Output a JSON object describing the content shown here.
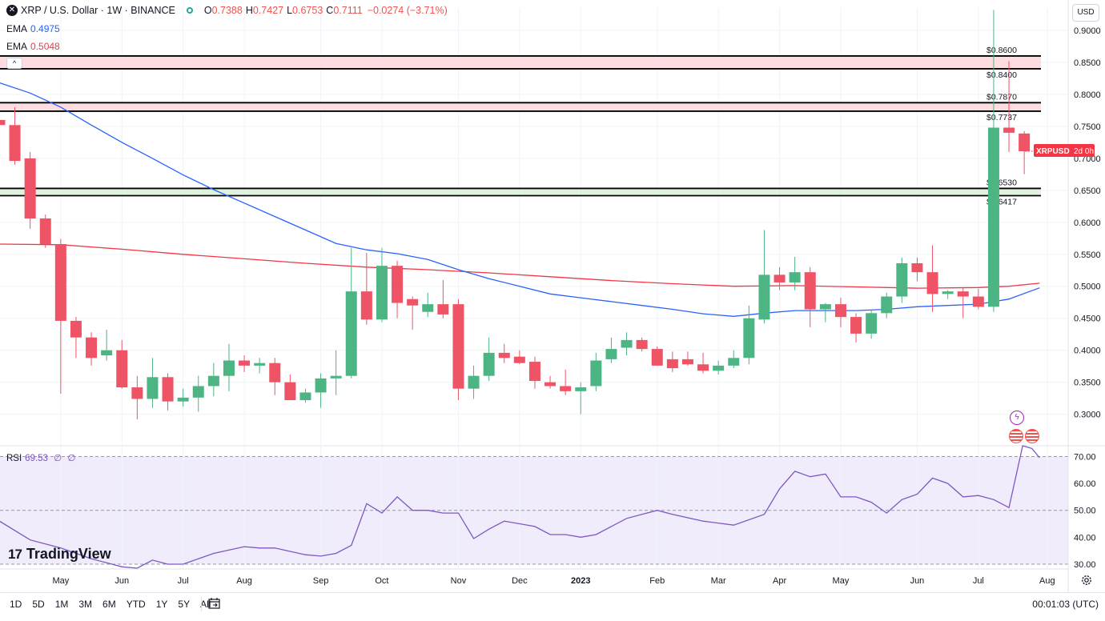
{
  "header": {
    "symbol_title": "XRP / U.S. Dollar · 1W · BINANCE",
    "ohlc": [
      {
        "label": "O",
        "value": "0.7388"
      },
      {
        "label": "H",
        "value": "0.7427"
      },
      {
        "label": "L",
        "value": "0.6753"
      },
      {
        "label": "C",
        "value": "0.7111"
      }
    ],
    "change": "−0.0274 (−3.71%)",
    "ema1_label": "EMA",
    "ema1_value": "0.4975",
    "ema2_label": "EMA",
    "ema2_value": "0.5048",
    "collapse_glyph": "^"
  },
  "currency_button": "USD",
  "rsi": {
    "label": "RSI",
    "value": "69.53",
    "extra1": "∅",
    "extra2": "∅"
  },
  "branding": {
    "logo_mark": "17",
    "logo_text": "TradingView"
  },
  "bottom_bar": {
    "ranges": [
      "1D",
      "5D",
      "1M",
      "3M",
      "6M",
      "YTD",
      "1Y",
      "5Y",
      "All"
    ],
    "clock": "00:01:03 (UTC)"
  },
  "icons": [
    "close-icon",
    "lightning-icon",
    "us-flag-icon",
    "calendar-icon",
    "gear-icon"
  ],
  "colors": {
    "up": "#4db584",
    "down": "#ef5366",
    "ema_fast": "#2962ff",
    "ema_slow": "#f23645",
    "rsi": "#7e57c2",
    "resist": "#ffd6d9",
    "support": "#d8f0d8"
  },
  "chart_data": {
    "type": "candlestick",
    "title": "XRP / U.S. Dollar · 1W · BINANCE",
    "price_ticks": [
      0.3,
      0.35,
      0.4,
      0.45,
      0.5,
      0.55,
      0.6,
      0.65,
      0.7,
      0.75,
      0.8,
      0.85,
      0.9
    ],
    "price_tick_labels": [
      "0.3000",
      "0.3500",
      "0.4000",
      "0.4500",
      "0.5000",
      "0.5500",
      "0.6000",
      "0.6500",
      "0.7000",
      "0.7500",
      "0.8000",
      "0.8500",
      "0.9000"
    ],
    "ylim": [
      0.252,
      0.935
    ],
    "x_labels": [
      {
        "label": "May",
        "x": 4
      },
      {
        "label": "Jun",
        "x": 8
      },
      {
        "label": "Jul",
        "x": 12
      },
      {
        "label": "Aug",
        "x": 16
      },
      {
        "label": "Sep",
        "x": 21
      },
      {
        "label": "Oct",
        "x": 25
      },
      {
        "label": "Nov",
        "x": 30
      },
      {
        "label": "Dec",
        "x": 34
      },
      {
        "label": "2023",
        "x": 38
      },
      {
        "label": "Feb",
        "x": 43
      },
      {
        "label": "Mar",
        "x": 47
      },
      {
        "label": "Apr",
        "x": 51
      },
      {
        "label": "May",
        "x": 55
      },
      {
        "label": "Jun",
        "x": 60
      },
      {
        "label": "Jul",
        "x": 64
      },
      {
        "label": "Aug",
        "x": 68.5
      }
    ],
    "candles": [
      {
        "o": 0.76,
        "h": 0.78,
        "l": 0.74,
        "c": 0.752
      },
      {
        "o": 0.752,
        "h": 0.78,
        "l": 0.69,
        "c": 0.696
      },
      {
        "o": 0.7,
        "h": 0.71,
        "l": 0.59,
        "c": 0.606
      },
      {
        "o": 0.606,
        "h": 0.612,
        "l": 0.56,
        "c": 0.566
      },
      {
        "o": 0.566,
        "h": 0.574,
        "l": 0.332,
        "c": 0.446
      },
      {
        "o": 0.446,
        "h": 0.452,
        "l": 0.388,
        "c": 0.42
      },
      {
        "o": 0.42,
        "h": 0.428,
        "l": 0.376,
        "c": 0.388
      },
      {
        "o": 0.392,
        "h": 0.432,
        "l": 0.384,
        "c": 0.4
      },
      {
        "o": 0.4,
        "h": 0.416,
        "l": 0.34,
        "c": 0.342
      },
      {
        "o": 0.342,
        "h": 0.36,
        "l": 0.292,
        "c": 0.324
      },
      {
        "o": 0.324,
        "h": 0.388,
        "l": 0.31,
        "c": 0.358
      },
      {
        "o": 0.358,
        "h": 0.364,
        "l": 0.306,
        "c": 0.32
      },
      {
        "o": 0.32,
        "h": 0.34,
        "l": 0.312,
        "c": 0.326
      },
      {
        "o": 0.326,
        "h": 0.36,
        "l": 0.304,
        "c": 0.344
      },
      {
        "o": 0.344,
        "h": 0.38,
        "l": 0.328,
        "c": 0.36
      },
      {
        "o": 0.36,
        "h": 0.41,
        "l": 0.336,
        "c": 0.384
      },
      {
        "o": 0.384,
        "h": 0.392,
        "l": 0.366,
        "c": 0.376
      },
      {
        "o": 0.376,
        "h": 0.388,
        "l": 0.364,
        "c": 0.38
      },
      {
        "o": 0.38,
        "h": 0.388,
        "l": 0.33,
        "c": 0.35
      },
      {
        "o": 0.35,
        "h": 0.362,
        "l": 0.322,
        "c": 0.322
      },
      {
        "o": 0.322,
        "h": 0.34,
        "l": 0.318,
        "c": 0.334
      },
      {
        "o": 0.334,
        "h": 0.364,
        "l": 0.31,
        "c": 0.356
      },
      {
        "o": 0.356,
        "h": 0.4,
        "l": 0.33,
        "c": 0.36
      },
      {
        "o": 0.36,
        "h": 0.56,
        "l": 0.356,
        "c": 0.492
      },
      {
        "o": 0.492,
        "h": 0.552,
        "l": 0.44,
        "c": 0.448
      },
      {
        "o": 0.448,
        "h": 0.56,
        "l": 0.444,
        "c": 0.532
      },
      {
        "o": 0.532,
        "h": 0.54,
        "l": 0.45,
        "c": 0.474
      },
      {
        "o": 0.48,
        "h": 0.484,
        "l": 0.432,
        "c": 0.47
      },
      {
        "o": 0.46,
        "h": 0.49,
        "l": 0.452,
        "c": 0.472
      },
      {
        "o": 0.472,
        "h": 0.51,
        "l": 0.45,
        "c": 0.456
      },
      {
        "o": 0.472,
        "h": 0.48,
        "l": 0.322,
        "c": 0.34
      },
      {
        "o": 0.34,
        "h": 0.376,
        "l": 0.324,
        "c": 0.36
      },
      {
        "o": 0.36,
        "h": 0.42,
        "l": 0.352,
        "c": 0.396
      },
      {
        "o": 0.396,
        "h": 0.41,
        "l": 0.38,
        "c": 0.388
      },
      {
        "o": 0.39,
        "h": 0.4,
        "l": 0.378,
        "c": 0.38
      },
      {
        "o": 0.382,
        "h": 0.39,
        "l": 0.34,
        "c": 0.352
      },
      {
        "o": 0.35,
        "h": 0.36,
        "l": 0.34,
        "c": 0.344
      },
      {
        "o": 0.344,
        "h": 0.37,
        "l": 0.33,
        "c": 0.336
      },
      {
        "o": 0.336,
        "h": 0.35,
        "l": 0.3,
        "c": 0.342
      },
      {
        "o": 0.344,
        "h": 0.396,
        "l": 0.336,
        "c": 0.384
      },
      {
        "o": 0.386,
        "h": 0.42,
        "l": 0.38,
        "c": 0.402
      },
      {
        "o": 0.404,
        "h": 0.428,
        "l": 0.392,
        "c": 0.416
      },
      {
        "o": 0.416,
        "h": 0.42,
        "l": 0.398,
        "c": 0.402
      },
      {
        "o": 0.402,
        "h": 0.406,
        "l": 0.376,
        "c": 0.376
      },
      {
        "o": 0.386,
        "h": 0.398,
        "l": 0.366,
        "c": 0.372
      },
      {
        "o": 0.386,
        "h": 0.398,
        "l": 0.376,
        "c": 0.378
      },
      {
        "o": 0.378,
        "h": 0.396,
        "l": 0.364,
        "c": 0.368
      },
      {
        "o": 0.368,
        "h": 0.384,
        "l": 0.362,
        "c": 0.376
      },
      {
        "o": 0.376,
        "h": 0.4,
        "l": 0.372,
        "c": 0.388
      },
      {
        "o": 0.388,
        "h": 0.47,
        "l": 0.378,
        "c": 0.45
      },
      {
        "o": 0.448,
        "h": 0.588,
        "l": 0.442,
        "c": 0.518
      },
      {
        "o": 0.518,
        "h": 0.53,
        "l": 0.494,
        "c": 0.506
      },
      {
        "o": 0.506,
        "h": 0.546,
        "l": 0.494,
        "c": 0.522
      },
      {
        "o": 0.522,
        "h": 0.53,
        "l": 0.436,
        "c": 0.464
      },
      {
        "o": 0.464,
        "h": 0.474,
        "l": 0.444,
        "c": 0.472
      },
      {
        "o": 0.472,
        "h": 0.482,
        "l": 0.436,
        "c": 0.452
      },
      {
        "o": 0.452,
        "h": 0.458,
        "l": 0.412,
        "c": 0.426
      },
      {
        "o": 0.426,
        "h": 0.462,
        "l": 0.418,
        "c": 0.458
      },
      {
        "o": 0.458,
        "h": 0.49,
        "l": 0.45,
        "c": 0.484
      },
      {
        "o": 0.484,
        "h": 0.545,
        "l": 0.474,
        "c": 0.536
      },
      {
        "o": 0.536,
        "h": 0.545,
        "l": 0.508,
        "c": 0.522
      },
      {
        "o": 0.522,
        "h": 0.564,
        "l": 0.46,
        "c": 0.488
      },
      {
        "o": 0.488,
        "h": 0.494,
        "l": 0.48,
        "c": 0.492
      },
      {
        "o": 0.492,
        "h": 0.498,
        "l": 0.45,
        "c": 0.484
      },
      {
        "o": 0.484,
        "h": 0.496,
        "l": 0.464,
        "c": 0.468
      },
      {
        "o": 0.468,
        "h": 0.932,
        "l": 0.46,
        "c": 0.748
      },
      {
        "o": 0.748,
        "h": 0.852,
        "l": 0.71,
        "c": 0.74
      },
      {
        "o": 0.7388,
        "h": 0.7427,
        "l": 0.6753,
        "c": 0.7111
      }
    ],
    "ema_fast": [
      [
        0,
        0.818
      ],
      [
        2,
        0.802
      ],
      [
        4,
        0.78
      ],
      [
        6,
        0.752
      ],
      [
        8,
        0.725
      ],
      [
        10,
        0.7
      ],
      [
        12,
        0.674
      ],
      [
        14,
        0.651
      ],
      [
        16,
        0.63
      ],
      [
        18,
        0.609
      ],
      [
        20,
        0.588
      ],
      [
        22,
        0.567
      ],
      [
        24,
        0.557
      ],
      [
        26,
        0.551
      ],
      [
        28,
        0.542
      ],
      [
        30,
        0.526
      ],
      [
        32,
        0.512
      ],
      [
        34,
        0.5
      ],
      [
        36,
        0.488
      ],
      [
        38,
        0.482
      ],
      [
        40,
        0.476
      ],
      [
        42,
        0.47
      ],
      [
        44,
        0.464
      ],
      [
        46,
        0.457
      ],
      [
        48,
        0.453
      ],
      [
        50,
        0.458
      ],
      [
        52,
        0.462
      ],
      [
        54,
        0.462
      ],
      [
        56,
        0.462
      ],
      [
        58,
        0.464
      ],
      [
        60,
        0.468
      ],
      [
        62,
        0.47
      ],
      [
        64,
        0.472
      ],
      [
        66,
        0.48
      ],
      [
        68,
        0.4975
      ]
    ],
    "ema_slow": [
      [
        0,
        0.566
      ],
      [
        4,
        0.565
      ],
      [
        8,
        0.558
      ],
      [
        12,
        0.55
      ],
      [
        16,
        0.543
      ],
      [
        20,
        0.536
      ],
      [
        24,
        0.53
      ],
      [
        28,
        0.526
      ],
      [
        32,
        0.521
      ],
      [
        36,
        0.515
      ],
      [
        40,
        0.509
      ],
      [
        44,
        0.504
      ],
      [
        48,
        0.5
      ],
      [
        52,
        0.501
      ],
      [
        56,
        0.499
      ],
      [
        60,
        0.497
      ],
      [
        64,
        0.498
      ],
      [
        66,
        0.5
      ],
      [
        68,
        0.5048
      ]
    ],
    "zones": [
      {
        "type": "resistance",
        "top": 0.86,
        "bottom": 0.84,
        "top_label": "$0.8600",
        "bottom_label": "$0.8400"
      },
      {
        "type": "resistance",
        "top": 0.787,
        "bottom": 0.7737,
        "top_label": "$0.7870",
        "bottom_label": "$0.7737"
      },
      {
        "type": "support",
        "top": 0.653,
        "bottom": 0.6417,
        "top_label": "$0.6530",
        "bottom_label": "$0.6417"
      }
    ],
    "last_price_tag": {
      "label": "XRPUSD",
      "countdown": "2d 0h",
      "price": 0.7111
    },
    "rsi_ticks": [
      30,
      40,
      50,
      60,
      70
    ],
    "rsi_tick_labels": [
      "30.00",
      "40.00",
      "50.00",
      "60.00",
      "70.00"
    ],
    "rsi_ylim": [
      28.5,
      74
    ],
    "rsi_values": [
      [
        0,
        46
      ],
      [
        2,
        39
      ],
      [
        4,
        36
      ],
      [
        6,
        32
      ],
      [
        8,
        29
      ],
      [
        9,
        28.5
      ],
      [
        10,
        31.5
      ],
      [
        11,
        30
      ],
      [
        12,
        30
      ],
      [
        14,
        34
      ],
      [
        16,
        36.5
      ],
      [
        17,
        36
      ],
      [
        18,
        36
      ],
      [
        20,
        33.5
      ],
      [
        21,
        33
      ],
      [
        22,
        34
      ],
      [
        23,
        37
      ],
      [
        24,
        52.5
      ],
      [
        25,
        49
      ],
      [
        26,
        55
      ],
      [
        27,
        50
      ],
      [
        28,
        50
      ],
      [
        29,
        49
      ],
      [
        30,
        49
      ],
      [
        31,
        39.5
      ],
      [
        32,
        43
      ],
      [
        33,
        46
      ],
      [
        34,
        45
      ],
      [
        35,
        44
      ],
      [
        36,
        41
      ],
      [
        37,
        41
      ],
      [
        38,
        40
      ],
      [
        39,
        41
      ],
      [
        41,
        47
      ],
      [
        43,
        50
      ],
      [
        44,
        48.5
      ],
      [
        46,
        46
      ],
      [
        48,
        44.5
      ],
      [
        50,
        48.5
      ],
      [
        51,
        58
      ],
      [
        52,
        64.5
      ],
      [
        53,
        62.5
      ],
      [
        54,
        63.5
      ],
      [
        55,
        55
      ],
      [
        56,
        55
      ],
      [
        57,
        53
      ],
      [
        58,
        49
      ],
      [
        59,
        54
      ],
      [
        60,
        56
      ],
      [
        61,
        62
      ],
      [
        62,
        60
      ],
      [
        63,
        55
      ],
      [
        64,
        55.5
      ],
      [
        65,
        54
      ],
      [
        66,
        51
      ],
      [
        66.9,
        74
      ],
      [
        67.5,
        73
      ],
      [
        68,
        69.53
      ]
    ]
  }
}
